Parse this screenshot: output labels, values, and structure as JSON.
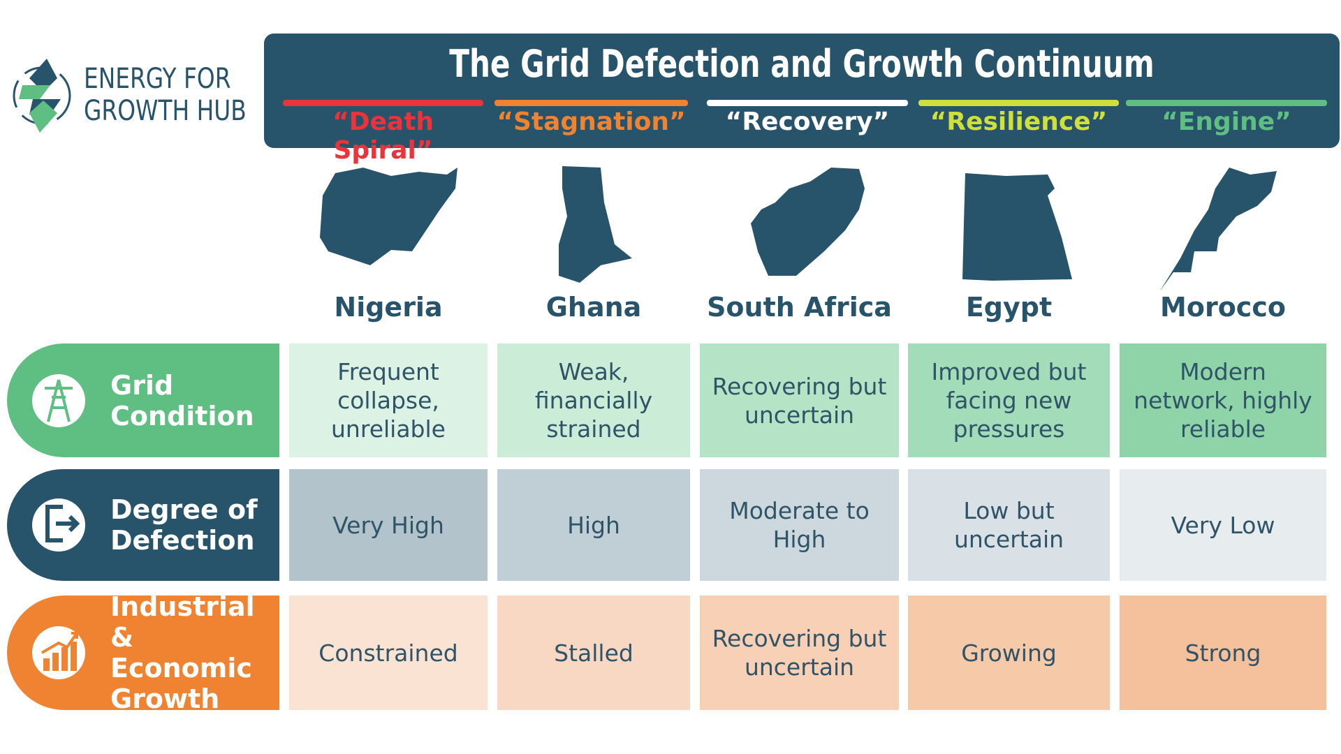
{
  "logo": {
    "lines": [
      "ENERGY FOR",
      "GROWTH HUB"
    ]
  },
  "header": {
    "title": "The Grid Defection and Growth Continuum",
    "stages": [
      "“Death Spiral”",
      "“Stagnation”",
      "“Recovery”",
      "“Resilience”",
      "“Engine”"
    ]
  },
  "countries": [
    "Nigeria",
    "Ghana",
    "South Africa",
    "Egypt",
    "Morocco"
  ],
  "table": {
    "rows": [
      {
        "label": "Grid Condition",
        "cells": [
          "Frequent collapse, unreliable",
          "Weak, financially strained",
          "Recovering but uncertain",
          "Improved but facing new pressures",
          "Modern network, highly reliable"
        ]
      },
      {
        "label": "Degree of Defection",
        "cells": [
          "Very High",
          "High",
          "Moderate to High",
          "Low but uncertain",
          "Very Low"
        ]
      },
      {
        "label": "Industrial & Economic Growth",
        "cells": [
          "Constrained",
          "Stalled",
          "Recovering but uncertain",
          "Growing",
          "Strong"
        ]
      }
    ]
  }
}
